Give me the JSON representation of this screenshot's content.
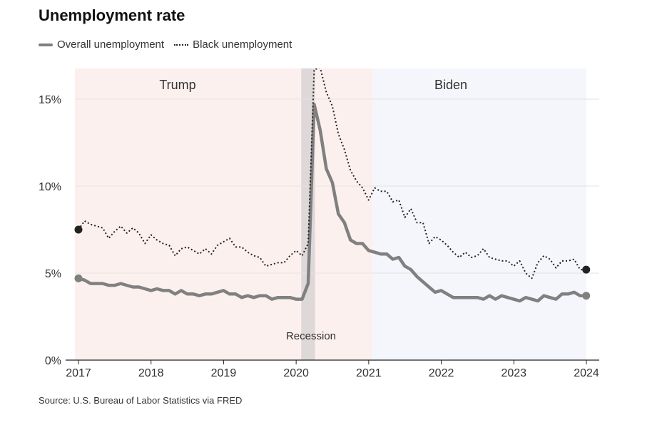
{
  "title": "Unemployment rate",
  "source": "Source: U.S. Bureau of Labor Statistics via FRED",
  "legend": {
    "overall": "Overall unemployment",
    "black": "Black unemployment"
  },
  "colors": {
    "overall": "#808080",
    "black": "#222222",
    "trump_bg": "#fcf0ef",
    "biden_bg": "#f5f6fb",
    "recession": "#d9d3d3",
    "grid": "#e3e3e3"
  },
  "chart_data": {
    "type": "line",
    "title": "Unemployment rate",
    "xlabel": "",
    "ylabel": "",
    "xlim": [
      2017.0,
      2024.0
    ],
    "ylim": [
      0,
      16
    ],
    "x_ticks": [
      "2017",
      "2018",
      "2019",
      "2020",
      "2021",
      "2022",
      "2023",
      "2024"
    ],
    "y_ticks": [
      {
        "value": 0,
        "label": "0%"
      },
      {
        "value": 5,
        "label": "5%"
      },
      {
        "value": 10,
        "label": "10%"
      },
      {
        "value": 15,
        "label": "15%"
      }
    ],
    "grid": true,
    "legend_position": "top-left",
    "regions": [
      {
        "label": "Trump",
        "start": 2017.0,
        "end": 2021.05,
        "kind": "term"
      },
      {
        "label": "Biden",
        "start": 2021.05,
        "end": 2024.0,
        "kind": "term"
      },
      {
        "label": "Recession",
        "start": 2020.08,
        "end": 2020.25,
        "kind": "recession"
      }
    ],
    "series": [
      {
        "name": "Overall unemployment",
        "style": "solid",
        "x_start": 2017.0,
        "step": 0.0833,
        "values": [
          4.7,
          4.6,
          4.4,
          4.4,
          4.4,
          4.3,
          4.3,
          4.4,
          4.3,
          4.2,
          4.2,
          4.1,
          4.0,
          4.1,
          4.0,
          4.0,
          3.8,
          4.0,
          3.8,
          3.8,
          3.7,
          3.8,
          3.8,
          3.9,
          4.0,
          3.8,
          3.8,
          3.6,
          3.7,
          3.6,
          3.7,
          3.7,
          3.5,
          3.6,
          3.6,
          3.6,
          3.5,
          3.5,
          4.4,
          14.7,
          13.2,
          11.0,
          10.2,
          8.4,
          7.9,
          6.9,
          6.7,
          6.7,
          6.3,
          6.2,
          6.1,
          6.1,
          5.8,
          5.9,
          5.4,
          5.2,
          4.8,
          4.5,
          4.2,
          3.9,
          4.0,
          3.8,
          3.6,
          3.6,
          3.6,
          3.6,
          3.6,
          3.5,
          3.7,
          3.5,
          3.7,
          3.6,
          3.5,
          3.4,
          3.6,
          3.5,
          3.4,
          3.7,
          3.6,
          3.5,
          3.8,
          3.8,
          3.9,
          3.7,
          3.7
        ],
        "endpoints": "both"
      },
      {
        "name": "Black unemployment",
        "style": "dotted",
        "x_start": 2017.0,
        "step": 0.0833,
        "values": [
          7.5,
          8.0,
          7.8,
          7.7,
          7.6,
          7.0,
          7.4,
          7.7,
          7.3,
          7.6,
          7.3,
          6.7,
          7.2,
          6.9,
          6.7,
          6.6,
          6.0,
          6.4,
          6.5,
          6.3,
          6.1,
          6.4,
          6.1,
          6.6,
          6.8,
          7.0,
          6.5,
          6.5,
          6.2,
          6.0,
          5.9,
          5.4,
          5.5,
          5.6,
          5.6,
          6.0,
          6.3,
          6.0,
          6.7,
          16.7,
          16.8,
          15.4,
          14.6,
          13.0,
          12.1,
          10.9,
          10.3,
          9.9,
          9.2,
          9.9,
          9.7,
          9.7,
          9.1,
          9.2,
          8.2,
          8.7,
          7.9,
          7.9,
          6.7,
          7.1,
          6.9,
          6.6,
          6.2,
          5.9,
          6.2,
          5.9,
          6.0,
          6.4,
          5.9,
          5.8,
          5.7,
          5.7,
          5.4,
          5.7,
          5.0,
          4.7,
          5.6,
          6.0,
          5.8,
          5.3,
          5.7,
          5.7,
          5.8,
          5.2,
          5.2
        ],
        "endpoints": "both"
      }
    ]
  }
}
